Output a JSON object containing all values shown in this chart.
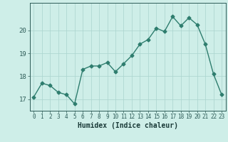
{
  "title": "",
  "xlabel": "Humidex (Indice chaleur)",
  "ylabel": "",
  "x": [
    0,
    1,
    2,
    3,
    4,
    5,
    6,
    7,
    8,
    9,
    10,
    11,
    12,
    13,
    14,
    15,
    16,
    17,
    18,
    19,
    20,
    21,
    22,
    23
  ],
  "y": [
    17.1,
    17.7,
    17.6,
    17.3,
    17.2,
    16.8,
    18.3,
    18.45,
    18.45,
    18.6,
    18.2,
    18.55,
    18.9,
    19.4,
    19.6,
    20.1,
    19.95,
    20.6,
    20.2,
    20.55,
    20.25,
    19.4,
    18.1,
    17.2
  ],
  "line_color": "#2e7d6e",
  "marker": "D",
  "markersize": 2.5,
  "linewidth": 1.0,
  "bg_color": "#ceeee8",
  "grid_color": "#aad4ce",
  "tick_color": "#2e5c58",
  "label_color": "#1a3a38",
  "ylim": [
    16.5,
    21.2
  ],
  "yticks": [
    17,
    18,
    19,
    20
  ],
  "xticks": [
    0,
    1,
    2,
    3,
    4,
    5,
    6,
    7,
    8,
    9,
    10,
    11,
    12,
    13,
    14,
    15,
    16,
    17,
    18,
    19,
    20,
    21,
    22,
    23
  ],
  "xlabel_fontsize": 7,
  "ytick_fontsize": 6.5,
  "xtick_fontsize": 5.5
}
